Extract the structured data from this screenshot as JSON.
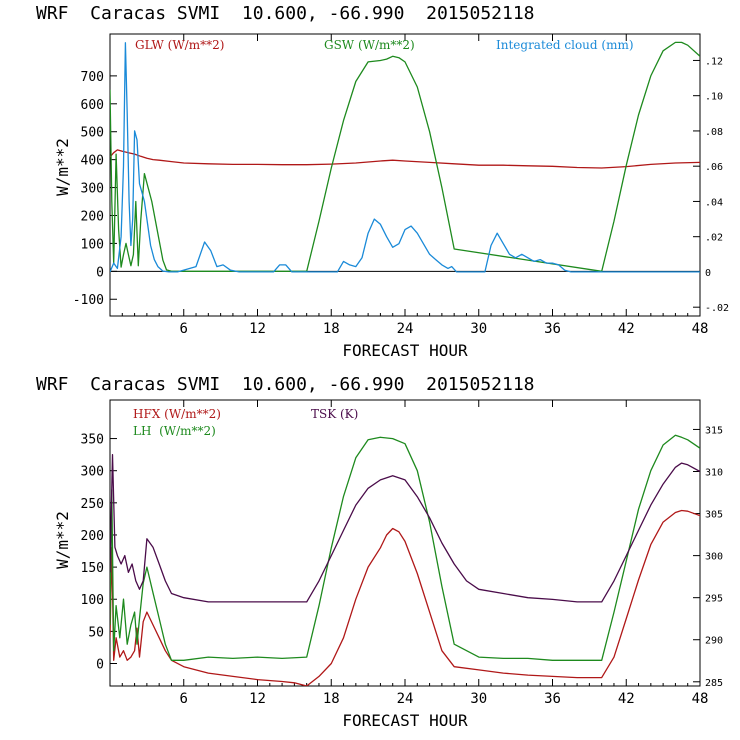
{
  "chart_data": [
    {
      "type": "line",
      "title": "WRF  Caracas SVMI  10.600, -66.990  2015052118",
      "xlabel": "FORECAST HOUR",
      "ylabel": "W/m**2",
      "xlim": [
        0,
        48
      ],
      "ylim": [
        -160,
        850
      ],
      "y2lim": [
        -0.025,
        0.135
      ],
      "xticks": [
        6,
        12,
        18,
        24,
        30,
        36,
        42,
        48
      ],
      "xtick_labels": [
        "6",
        "12",
        "18",
        "24",
        "30",
        "36",
        "42",
        "48"
      ],
      "yticks": [
        -100,
        0,
        100,
        200,
        300,
        400,
        500,
        600,
        700
      ],
      "ytick_labels": [
        "-100",
        "0",
        "100",
        "200",
        "300",
        "400",
        "500",
        "600",
        "700"
      ],
      "y2ticks": [
        -0.02,
        0,
        0.02,
        0.04,
        0.06,
        0.08,
        0.1,
        0.12
      ],
      "y2tick_labels": [
        "-.02",
        "0",
        ".02",
        ".04",
        ".06",
        ".08",
        ".10",
        ".12"
      ],
      "zero_line": true,
      "series": [
        {
          "name": "GLW (W/m**2)",
          "axis": "left",
          "color": "#b01818",
          "x": [
            0,
            0.3,
            0.6,
            1,
            1.5,
            2,
            2.5,
            3,
            3.5,
            4,
            5,
            6,
            8,
            10,
            12,
            14,
            16,
            18,
            20,
            22,
            23,
            24,
            26,
            28,
            30,
            32,
            34,
            36,
            38,
            40,
            42,
            44,
            46,
            48
          ],
          "values": [
            410,
            425,
            435,
            430,
            425,
            420,
            412,
            405,
            400,
            398,
            393,
            388,
            385,
            383,
            383,
            382,
            382,
            384,
            388,
            395,
            398,
            395,
            390,
            385,
            380,
            380,
            378,
            376,
            372,
            370,
            375,
            383,
            388,
            390
          ]
        },
        {
          "name": "GSW (W/m**2)",
          "axis": "left",
          "color": "#1e8a1e",
          "x": [
            0,
            0.15,
            0.3,
            0.5,
            0.7,
            0.9,
            1.1,
            1.3,
            1.5,
            1.7,
            1.9,
            2.1,
            2.3,
            2.5,
            2.8,
            3.1,
            3.4,
            3.7,
            4.0,
            4.3,
            4.6,
            5,
            16,
            17,
            18,
            19,
            20,
            21,
            22,
            22.5,
            23,
            23.5,
            24,
            25,
            26,
            27,
            28,
            40,
            41,
            42,
            43,
            44,
            45,
            46,
            46.5,
            47,
            48
          ],
          "values": [
            650,
            250,
            30,
            420,
            150,
            15,
            60,
            100,
            60,
            20,
            60,
            250,
            20,
            180,
            350,
            300,
            250,
            180,
            110,
            40,
            5,
            0,
            0,
            180,
            370,
            540,
            680,
            750,
            755,
            760,
            770,
            765,
            750,
            660,
            500,
            300,
            80,
            0,
            180,
            380,
            560,
            700,
            790,
            820,
            820,
            810,
            770
          ]
        },
        {
          "name": "Integrated cloud (mm)",
          "axis": "right",
          "color": "#1a8ad8",
          "x": [
            0,
            0.3,
            0.6,
            0.9,
            1.1,
            1.25,
            1.4,
            1.55,
            1.7,
            1.85,
            2.0,
            2.2,
            2.4,
            2.6,
            2.8,
            3.0,
            3.3,
            3.6,
            3.9,
            4.3,
            4.8,
            5.5,
            7,
            7.7,
            8.2,
            8.7,
            9.2,
            9.8,
            10.5,
            13.3,
            13.8,
            14.3,
            14.8,
            18.5,
            19.0,
            19.5,
            20.0,
            20.5,
            21.0,
            21.5,
            22.0,
            22.5,
            23.0,
            23.5,
            24.0,
            24.5,
            25.0,
            25.5,
            26.0,
            26.5,
            27.0,
            27.5,
            27.8,
            28.2,
            30.5,
            31.0,
            31.5,
            32.0,
            32.5,
            33.0,
            33.5,
            34.0,
            34.5,
            35.0,
            35.5,
            36.0,
            36.5,
            37.0,
            37.5,
            48
          ],
          "values": [
            0.0,
            0.005,
            0.002,
            0.02,
            0.06,
            0.13,
            0.09,
            0.04,
            0.015,
            0.03,
            0.08,
            0.075,
            0.05,
            0.045,
            0.04,
            0.03,
            0.015,
            0.007,
            0.003,
            0.0005,
            0,
            0,
            0.003,
            0.017,
            0.012,
            0.003,
            0.004,
            0.001,
            0,
            0,
            0.004,
            0.004,
            0,
            0,
            0.006,
            0.004,
            0.003,
            0.008,
            0.022,
            0.03,
            0.027,
            0.02,
            0.014,
            0.016,
            0.024,
            0.026,
            0.022,
            0.016,
            0.01,
            0.007,
            0.004,
            0.002,
            0.003,
            0,
            0,
            0.015,
            0.022,
            0.016,
            0.01,
            0.008,
            0.01,
            0.008,
            0.006,
            0.007,
            0.005,
            0.005,
            0.004,
            0.001,
            0,
            0
          ]
        }
      ]
    },
    {
      "type": "line",
      "title": "WRF  Caracas SVMI  10.600, -66.990  2015052118",
      "xlabel": "FORECAST HOUR",
      "ylabel": "W/m**2",
      "xlim": [
        0,
        48
      ],
      "ylim": [
        -35,
        410
      ],
      "y2lim": [
        284.5,
        318.5
      ],
      "xticks": [
        6,
        12,
        18,
        24,
        30,
        36,
        42,
        48
      ],
      "xtick_labels": [
        "6",
        "12",
        "18",
        "24",
        "30",
        "36",
        "42",
        "48"
      ],
      "yticks": [
        0,
        50,
        100,
        150,
        200,
        250,
        300,
        350
      ],
      "ytick_labels": [
        "0",
        "50",
        "100",
        "150",
        "200",
        "250",
        "300",
        "350"
      ],
      "y2ticks": [
        285,
        290,
        295,
        300,
        305,
        310,
        315
      ],
      "y2tick_labels": [
        "285",
        "290",
        "295",
        "300",
        "305",
        "310",
        "315"
      ],
      "zero_line": false,
      "series": [
        {
          "name": "HFX (W/m**2)",
          "axis": "left",
          "color": "#b01818",
          "x": [
            0,
            0.15,
            0.3,
            0.5,
            0.8,
            1.1,
            1.4,
            1.7,
            2.0,
            2.2,
            2.4,
            2.7,
            3.0,
            3.5,
            4.0,
            4.5,
            5,
            6,
            8,
            10,
            12,
            14,
            15,
            16,
            17,
            18,
            19,
            20,
            21,
            22,
            22.5,
            23,
            23.5,
            24,
            25,
            26,
            27,
            28,
            30,
            32,
            34,
            36,
            38,
            40,
            41,
            42,
            43,
            44,
            45,
            46,
            46.5,
            47,
            48
          ],
          "values": [
            40,
            180,
            5,
            40,
            10,
            20,
            5,
            10,
            20,
            55,
            10,
            65,
            80,
            60,
            40,
            20,
            5,
            -5,
            -15,
            -20,
            -25,
            -28,
            -30,
            -35,
            -20,
            0,
            40,
            100,
            150,
            180,
            200,
            210,
            205,
            190,
            140,
            80,
            20,
            -5,
            -10,
            -15,
            -18,
            -20,
            -22,
            -22,
            10,
            70,
            130,
            185,
            220,
            235,
            238,
            237,
            230
          ]
        },
        {
          "name": "LH  (W/m**2)",
          "axis": "left",
          "color": "#1e8a1e",
          "x": [
            0,
            0.15,
            0.3,
            0.5,
            0.8,
            1.1,
            1.4,
            1.7,
            2.0,
            2.2,
            2.4,
            2.7,
            3.0,
            3.5,
            4.0,
            4.5,
            5,
            6,
            8,
            10,
            12,
            14,
            16,
            17,
            18,
            19,
            20,
            21,
            22,
            23,
            24,
            25,
            26,
            27,
            28,
            30,
            32,
            34,
            36,
            38,
            40,
            41,
            42,
            43,
            44,
            45,
            46,
            46.5,
            47,
            48
          ],
          "values": [
            60,
            270,
            20,
            90,
            40,
            100,
            30,
            60,
            80,
            30,
            70,
            125,
            150,
            110,
            70,
            30,
            5,
            5,
            10,
            8,
            10,
            8,
            10,
            90,
            180,
            260,
            320,
            348,
            352,
            350,
            342,
            300,
            220,
            120,
            30,
            10,
            8,
            8,
            5,
            5,
            5,
            80,
            160,
            240,
            300,
            340,
            355,
            352,
            348,
            335
          ]
        },
        {
          "name": "TSK (K)",
          "axis": "right",
          "color": "#4a0c4a",
          "x": [
            0,
            0.2,
            0.4,
            0.6,
            0.9,
            1.2,
            1.5,
            1.8,
            2.1,
            2.4,
            2.7,
            3.0,
            3.5,
            4.0,
            4.5,
            5,
            6,
            8,
            10,
            12,
            14,
            16,
            17,
            18,
            19,
            20,
            21,
            22,
            23,
            24,
            25,
            26,
            27,
            28,
            29,
            30,
            32,
            34,
            36,
            38,
            40,
            41,
            42,
            43,
            44,
            45,
            46,
            46.5,
            47,
            48
          ],
          "values": [
            298,
            312,
            301,
            300,
            299,
            300,
            298,
            299,
            297,
            296,
            297,
            302,
            301,
            299,
            297,
            295.5,
            295,
            294.5,
            294.5,
            294.5,
            294.5,
            294.5,
            297,
            300,
            303,
            306,
            308,
            309,
            309.5,
            309,
            307,
            304.5,
            301.5,
            299,
            297,
            296,
            295.5,
            295,
            294.8,
            294.5,
            294.5,
            297,
            300,
            303,
            306,
            308.5,
            310.5,
            311,
            310.8,
            310
          ]
        }
      ]
    }
  ]
}
